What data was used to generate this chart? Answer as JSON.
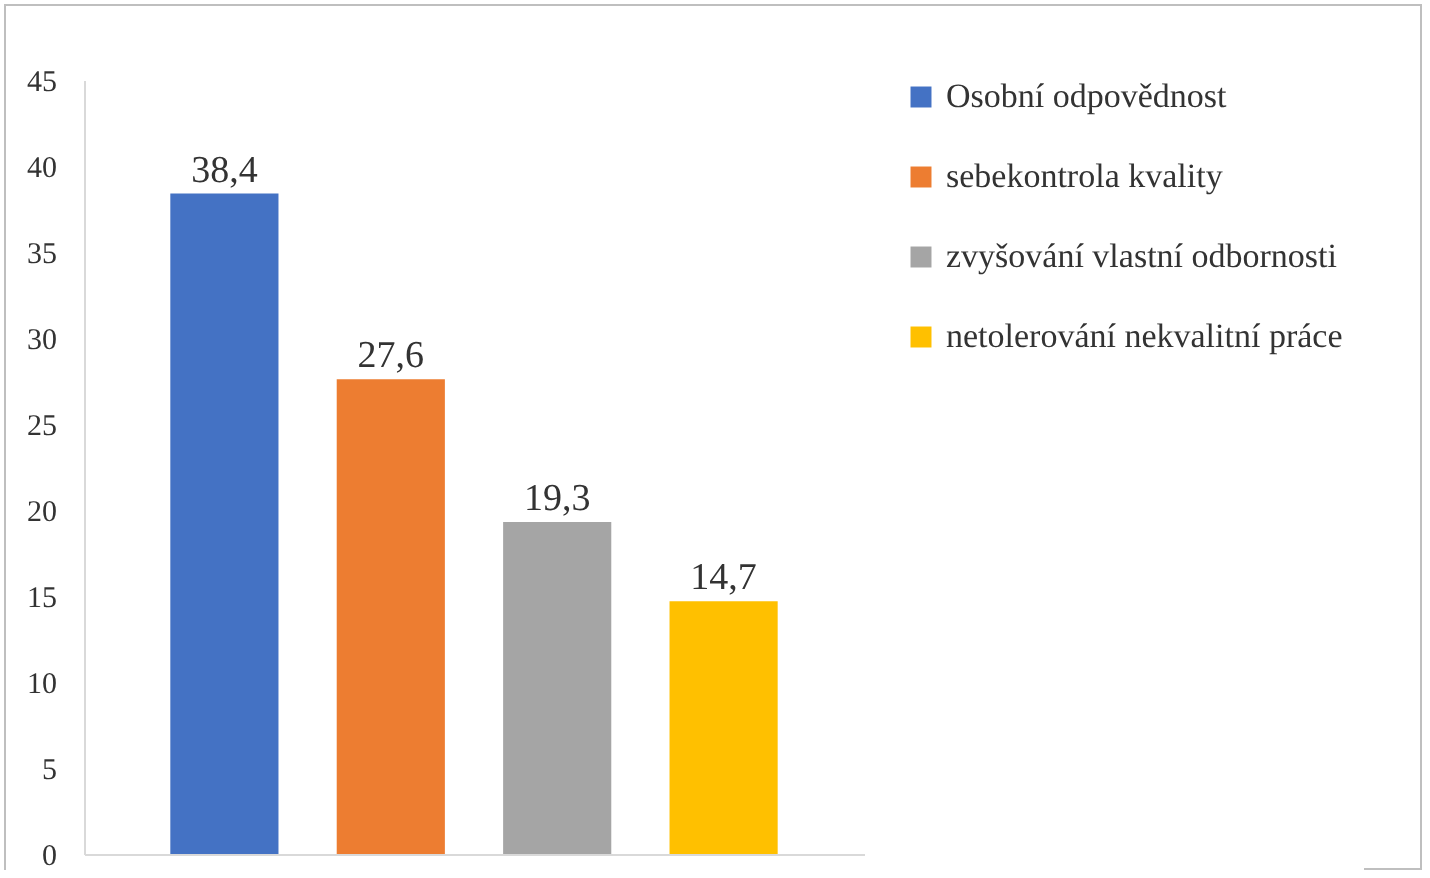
{
  "chart_data": {
    "type": "bar",
    "categories": [
      null
    ],
    "series": [
      {
        "name": "Osobní odpovědnost",
        "color": "#4472c4",
        "values": [
          38.4
        ],
        "value_labels": [
          "38,4"
        ]
      },
      {
        "name": "sebekontrola kvality",
        "color": "#ed7d31",
        "values": [
          27.6
        ],
        "value_labels": [
          "27,6"
        ]
      },
      {
        "name": "zvyšování vlastní odbornosti",
        "color": "#a5a5a5",
        "values": [
          19.3
        ],
        "value_labels": [
          "19,3"
        ]
      },
      {
        "name": "netolerování nekvalitní práce",
        "color": "#ffc000",
        "values": [
          14.7
        ],
        "value_labels": [
          "14,7"
        ]
      }
    ],
    "ylim": [
      0,
      45
    ],
    "yticks": [
      0,
      5,
      10,
      15,
      20,
      25,
      30,
      35,
      40,
      45
    ],
    "grid": false,
    "legend": "right"
  }
}
